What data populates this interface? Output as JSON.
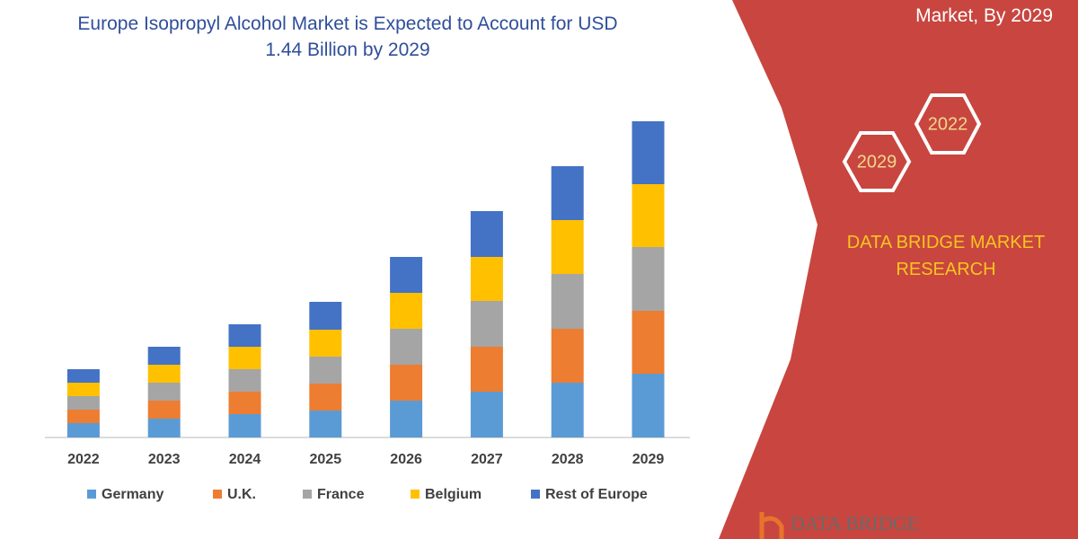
{
  "title": "Europe Isopropyl Alcohol Market is Expected to Account for USD 1.44 Billion by 2029",
  "chart_data": {
    "type": "stacked-bar",
    "categories": [
      "2022",
      "2023",
      "2024",
      "2025",
      "2026",
      "2027",
      "2028",
      "2029"
    ],
    "series": [
      {
        "name": "Germany",
        "color": "#5b9bd5",
        "values": [
          16,
          21,
          26,
          30,
          41,
          51,
          61,
          71
        ]
      },
      {
        "name": "U.K.",
        "color": "#ed7d31",
        "values": [
          15,
          20,
          25,
          30,
          40,
          50,
          60,
          70
        ]
      },
      {
        "name": "France",
        "color": "#a5a5a5",
        "values": [
          15,
          20,
          25,
          30,
          40,
          51,
          61,
          71
        ]
      },
      {
        "name": "Belgium",
        "color": "#ffc000",
        "values": [
          15,
          20,
          25,
          30,
          40,
          49,
          60,
          70
        ]
      },
      {
        "name": "Rest of Europe",
        "color": "#4472c4",
        "values": [
          15,
          20,
          25,
          31,
          40,
          51,
          60,
          70
        ]
      }
    ]
  },
  "side_panel": {
    "heading": "Market, By 2029",
    "hex_labels": [
      "2029",
      "2022"
    ],
    "brand": "DATA BRIDGE MARKET RESEARCH",
    "logo": "DATA BRIDGE"
  }
}
